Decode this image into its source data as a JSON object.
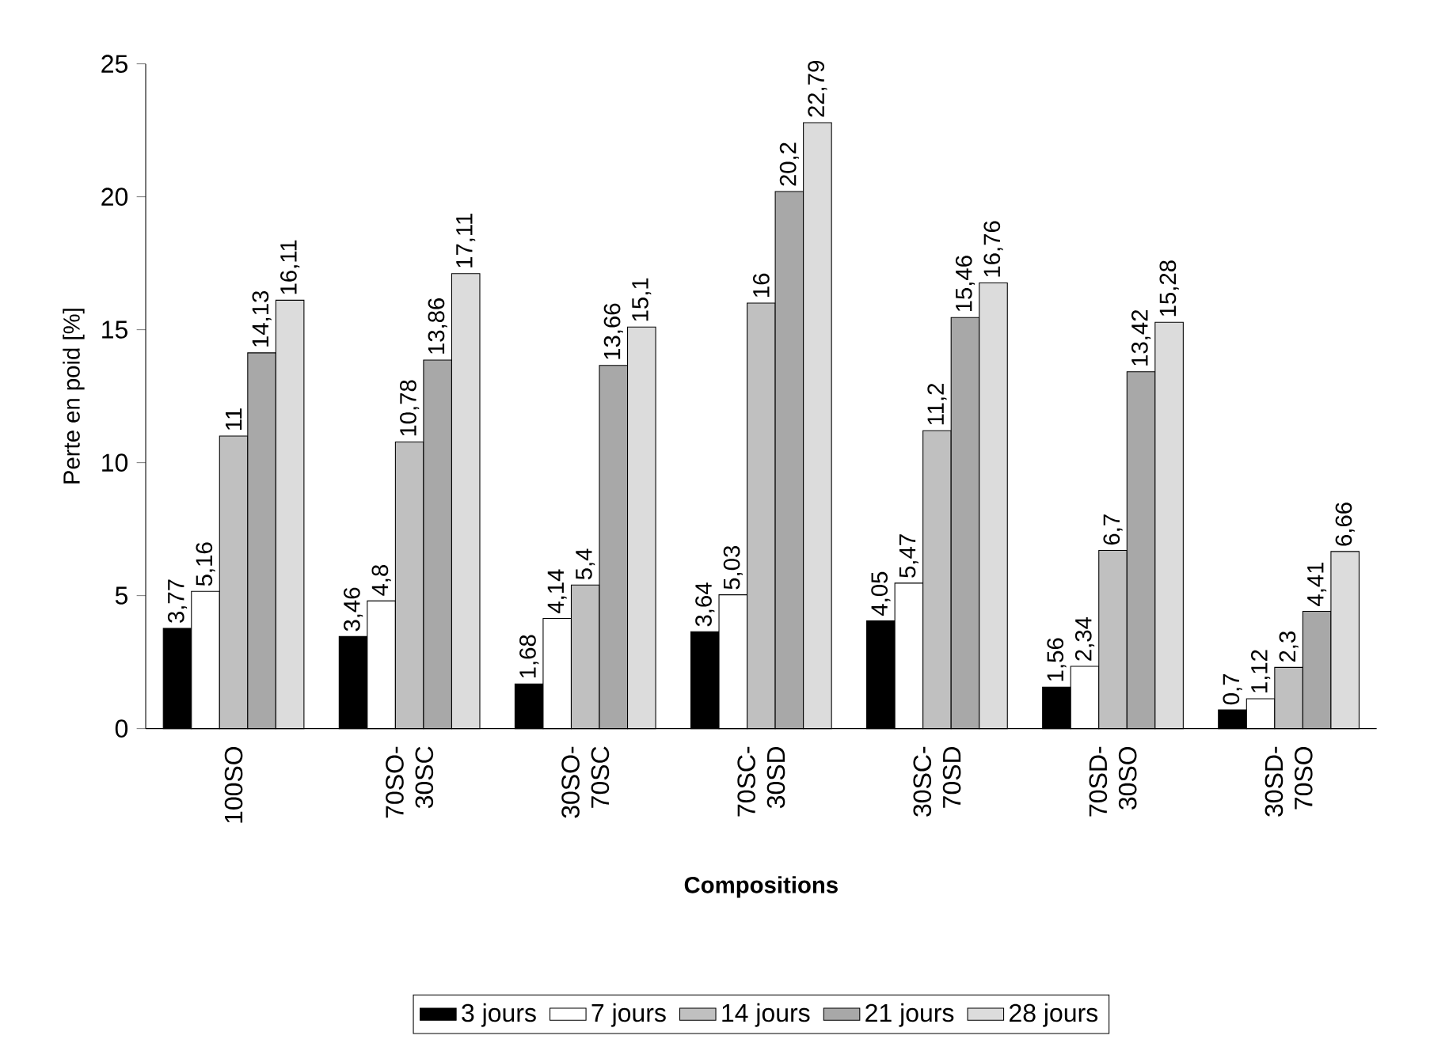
{
  "chart_data": {
    "type": "bar",
    "xlabel": "Compositions",
    "ylabel": "Perte en poid [%]",
    "categories": [
      "100SO",
      "70SO-30SC",
      "30SO-70SC",
      "70SC-30SD",
      "30SC-70SD",
      "70SD-30SO",
      "30SD-70SO"
    ],
    "series": [
      {
        "name": "3 jours",
        "color": "#000000",
        "values": [
          3.77,
          3.46,
          1.68,
          3.64,
          4.05,
          1.56,
          0.7
        ],
        "value_labels": [
          "3,77",
          "3,46",
          "1,68",
          "3,64",
          "4,05",
          "1,56",
          "0,7"
        ]
      },
      {
        "name": "7 jours",
        "color": "#ffffff",
        "values": [
          5.16,
          4.8,
          4.14,
          5.03,
          5.47,
          2.34,
          1.12
        ],
        "value_labels": [
          "5,16",
          "4,8",
          "4,14",
          "5,03",
          "5,47",
          "2,34",
          "1,12"
        ]
      },
      {
        "name": "14 jours",
        "color": "#c0c0c0",
        "values": [
          11,
          10.78,
          5.4,
          16,
          11.2,
          6.7,
          2.3
        ],
        "value_labels": [
          "11",
          "10,78",
          "5,4",
          "16",
          "11,2",
          "6,7",
          "2,3"
        ]
      },
      {
        "name": "21 jours",
        "color": "#a8a8a8",
        "values": [
          14.13,
          13.86,
          13.66,
          20.2,
          15.46,
          13.42,
          4.41
        ],
        "value_labels": [
          "14,13",
          "13,86",
          "13,66",
          "20,2",
          "15,46",
          "13,42",
          "4,41"
        ]
      },
      {
        "name": "28 jours",
        "color": "#dcdcdc",
        "values": [
          16.11,
          17.11,
          15.1,
          22.79,
          16.76,
          15.28,
          6.66
        ],
        "value_labels": [
          "16,11",
          "17,11",
          "15,1",
          "22,79",
          "16,76",
          "15,28",
          "6,66"
        ]
      }
    ],
    "ylim": [
      0,
      25
    ],
    "yticks": [
      0,
      5,
      10,
      15,
      20,
      25
    ],
    "grid": false,
    "legend": "bottom"
  }
}
